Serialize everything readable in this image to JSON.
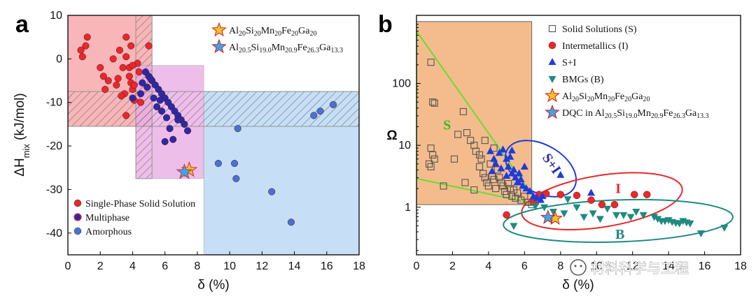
{
  "panel_a_label": "a",
  "panel_b_label": "b",
  "watermark": "材料科学与工程",
  "colors": {
    "red": "#e8282c",
    "navy": "#2a2aa8",
    "blue_point": "#4a70d4",
    "bright_blue": "#1e3cdc",
    "teal": "#1e8a80",
    "orange_region": "#f4bc8c",
    "green_line": "#66dd33",
    "red_region": "#f7a4a8",
    "pink_region": "#eaaee6",
    "blue_region": "#b8d8f4"
  },
  "chart_data": [
    {
      "panel": "a",
      "type": "scatter",
      "xlabel": "δ (%)",
      "ylabel_main": "ΔH",
      "ylabel_sub": "mix",
      "ylabel_unit": " (kJ/mol)",
      "xlim": [
        0,
        18
      ],
      "ylim": [
        -45,
        10
      ],
      "xticks": [
        "0",
        "2",
        "4",
        "6",
        "8",
        "10",
        "12",
        "14",
        "16",
        "18"
      ],
      "yticks": [
        "10",
        "0",
        "-10",
        "-20",
        "-30",
        "-40"
      ],
      "regions": [
        {
          "name": "solid-solution-region",
          "x": [
            0,
            5.2
          ],
          "y": [
            -15.5,
            10
          ],
          "fill": "#f7a4a8"
        },
        {
          "name": "multiphase-region",
          "x": [
            4.2,
            8.4
          ],
          "y": [
            -27.5,
            -1.5
          ],
          "fill": "#eaaee6"
        },
        {
          "name": "amorphous-region",
          "x": [
            8.4,
            18
          ],
          "y": [
            -45,
            -7.5
          ],
          "fill": "#b8d8f4"
        },
        {
          "name": "hatched-vertical-band",
          "x": [
            4.2,
            5.2
          ],
          "y": [
            -27.5,
            10
          ],
          "hatch": true
        },
        {
          "name": "hatched-horizontal-band",
          "x": [
            0,
            18
          ],
          "y": [
            -15.5,
            -7.5
          ],
          "hatch": true
        }
      ],
      "series": [
        {
          "name": "Single-Phase Solid Solution",
          "color": "#e8282c",
          "points": [
            [
              0.9,
              0.5
            ],
            [
              1.1,
              3
            ],
            [
              1.2,
              5
            ],
            [
              0.8,
              2
            ],
            [
              2.0,
              -2
            ],
            [
              2.2,
              -4
            ],
            [
              2.3,
              -7
            ],
            [
              2.8,
              0
            ],
            [
              3.0,
              -6
            ],
            [
              3.2,
              2
            ],
            [
              3.4,
              -2
            ],
            [
              3.6,
              0.5
            ],
            [
              3.5,
              -8
            ],
            [
              3.6,
              -13
            ],
            [
              3.6,
              5
            ],
            [
              3.8,
              -4
            ],
            [
              3.9,
              -5.5
            ],
            [
              4.0,
              -7
            ],
            [
              4.1,
              -9.5
            ],
            [
              4.1,
              -6
            ],
            [
              4.3,
              -1
            ],
            [
              3.8,
              -2
            ],
            [
              4.4,
              -3
            ],
            [
              4.0,
              -1.5
            ],
            [
              3.9,
              3
            ],
            [
              5.0,
              3
            ],
            [
              3.1,
              -4.5
            ],
            [
              3.3,
              -8.5
            ],
            [
              2.5,
              -5
            ],
            [
              4.5,
              -10
            ]
          ]
        },
        {
          "name": "Multiphase",
          "color": "#2a2aa8",
          "points": [
            [
              4.8,
              -3
            ],
            [
              5.0,
              -4
            ],
            [
              5.2,
              -5
            ],
            [
              5.4,
              -6
            ],
            [
              5.6,
              -7
            ],
            [
              5.8,
              -8
            ],
            [
              6.0,
              -9
            ],
            [
              6.2,
              -10
            ],
            [
              6.4,
              -11
            ],
            [
              6.6,
              -12
            ],
            [
              6.8,
              -13
            ],
            [
              7.0,
              -14
            ],
            [
              7.2,
              -15
            ],
            [
              7.4,
              -16.5
            ],
            [
              4.6,
              -5.5
            ],
            [
              4.9,
              -6.5
            ],
            [
              5.3,
              -9
            ],
            [
              5.5,
              -11
            ],
            [
              5.8,
              -12
            ],
            [
              6.1,
              -13.5
            ],
            [
              6.3,
              -16
            ],
            [
              6.0,
              -19
            ],
            [
              6.5,
              -18.5
            ],
            [
              6.8,
              -14
            ],
            [
              5.1,
              -4.5
            ],
            [
              5.7,
              -9.5
            ],
            [
              4.5,
              -8
            ],
            [
              4.0,
              -9
            ]
          ]
        },
        {
          "name": "Amorphous",
          "color": "#4a70d4",
          "points": [
            [
              9.3,
              -24
            ],
            [
              10.3,
              -24
            ],
            [
              10.4,
              -27.5
            ],
            [
              10.5,
              -16
            ],
            [
              12.6,
              -30.5
            ],
            [
              13.8,
              -37.5
            ],
            [
              15.2,
              -13
            ],
            [
              15.6,
              -12
            ],
            [
              16.4,
              -10.5
            ]
          ]
        }
      ],
      "stars": [
        {
          "name": "Al20Si20Mn20Fe20Ga20",
          "x": 7.5,
          "y": -25.5,
          "color": "#f5c028"
        },
        {
          "name": "Al20.5Si19.0Mn20.9Fe26.3Ga13.3",
          "x": 7.2,
          "y": -26,
          "color": "#3aa6ee"
        }
      ],
      "legend_top": [
        {
          "parts": [
            "Al",
            "20",
            "Si",
            "20",
            "Mn",
            "20",
            "Fe",
            "20",
            "Ga",
            "20"
          ],
          "color": "#f5c028"
        },
        {
          "parts": [
            "Al",
            "20.5",
            "Si",
            "19.0",
            "Mn",
            "20.9",
            "Fe",
            "26.3",
            "Ga",
            "13.3"
          ],
          "color": "#3aa6ee"
        }
      ],
      "legend_bottom": [
        "Single-Phase Solid Solution",
        "Multiphase",
        "Amorphous"
      ]
    },
    {
      "panel": "b",
      "type": "scatter",
      "xlabel": "δ (%)",
      "ylabel": "Ω",
      "xlim": [
        0,
        18
      ],
      "ylim_log10": [
        -0.77,
        3.1
      ],
      "xticks": [
        "0",
        "2",
        "4",
        "6",
        "8",
        "10",
        "12",
        "14",
        "16",
        "18"
      ],
      "yticks": [
        {
          "label": "1",
          "value": 1
        },
        {
          "label": "10",
          "value": 10
        },
        {
          "label": "100",
          "value": 100
        }
      ],
      "region_labels": [
        {
          "text": "S",
          "x": 1.7,
          "omega": 18,
          "color": "#33bb22"
        },
        {
          "text": "S+I",
          "x": 7.3,
          "omega": 4.6,
          "color": "#2a2aa8"
        },
        {
          "text": "I",
          "x": 11.2,
          "omega": 1.7,
          "color": "#e8282c"
        },
        {
          "text": "B",
          "x": 11.3,
          "omega": 0.31,
          "color": "#1e8a80"
        }
      ],
      "series": [
        {
          "name": "Solid Solutions (S)",
          "marker": "square-open",
          "color": "#555555",
          "points": [
            [
              0.8,
              220
            ],
            [
              0.9,
              50
            ],
            [
              1.0,
              48
            ],
            [
              0.8,
              9
            ],
            [
              0.9,
              7
            ],
            [
              0.7,
              5
            ],
            [
              1.0,
              6
            ],
            [
              0.8,
              4.5
            ],
            [
              1.5,
              2.2
            ],
            [
              2.1,
              6
            ],
            [
              2.3,
              15
            ],
            [
              2.6,
              35
            ],
            [
              2.8,
              16
            ],
            [
              3.0,
              12
            ],
            [
              3.2,
              10
            ],
            [
              3.3,
              8
            ],
            [
              3.5,
              7
            ],
            [
              3.6,
              6
            ],
            [
              3.5,
              4.5
            ],
            [
              3.7,
              3.5
            ],
            [
              3.8,
              3
            ],
            [
              3.9,
              2.5
            ],
            [
              4.0,
              2.2
            ],
            [
              4.1,
              5
            ],
            [
              4.2,
              3.2
            ],
            [
              4.3,
              2.8
            ],
            [
              4.4,
              2
            ],
            [
              4.5,
              4
            ],
            [
              4.6,
              3
            ],
            [
              4.7,
              2.5
            ],
            [
              4.8,
              2.2
            ],
            [
              4.9,
              1.8
            ],
            [
              5.0,
              1.6
            ],
            [
              5.1,
              2.4
            ],
            [
              5.2,
              2
            ],
            [
              5.3,
              1.5
            ],
            [
              5.4,
              1.9
            ],
            [
              5.5,
              1.4
            ],
            [
              5.6,
              1.7
            ],
            [
              5.8,
              1.3
            ],
            [
              6.0,
              1.5
            ],
            [
              6.2,
              1.2
            ],
            [
              6.4,
              1.1
            ],
            [
              2.7,
              2.5
            ],
            [
              3.2,
              1.9
            ],
            [
              3.8,
              12
            ],
            [
              4.3,
              9
            ]
          ]
        },
        {
          "name": "Intermetallics (I)",
          "marker": "circle",
          "color": "#e8282c",
          "points": [
            [
              5.0,
              0.75
            ],
            [
              6.8,
              1.6
            ],
            [
              7.2,
              1.65
            ],
            [
              8.0,
              1.6
            ],
            [
              8.9,
              1.55
            ],
            [
              9.7,
              1.3
            ],
            [
              10.3,
              1.1
            ],
            [
              11.0,
              1.1
            ],
            [
              12.1,
              1.6
            ],
            [
              12.8,
              1.6
            ],
            [
              6.5,
              1.2
            ]
          ]
        },
        {
          "name": "S+I",
          "marker": "triangle-up",
          "color": "#1e3cdc",
          "points": [
            [
              4.1,
              8
            ],
            [
              4.3,
              6
            ],
            [
              4.4,
              5
            ],
            [
              4.6,
              7.5
            ],
            [
              4.8,
              8.5
            ],
            [
              5.0,
              6
            ],
            [
              5.1,
              4.5
            ],
            [
              5.2,
              6.5
            ],
            [
              5.3,
              3.5
            ],
            [
              5.4,
              4
            ],
            [
              5.5,
              3
            ],
            [
              5.6,
              2.5
            ],
            [
              5.8,
              2.8
            ],
            [
              5.9,
              2.2
            ],
            [
              6.1,
              2
            ],
            [
              6.3,
              1.8
            ],
            [
              6.5,
              1.5
            ],
            [
              6.7,
              1.4
            ],
            [
              6.9,
              1.3
            ],
            [
              7.0,
              1.5
            ],
            [
              4.7,
              4.2
            ],
            [
              5.0,
              3.2
            ],
            [
              5.7,
              3.5
            ],
            [
              8.0,
              3.3
            ],
            [
              9.7,
              1.7
            ],
            [
              4.2,
              3.8
            ],
            [
              5.3,
              8.2
            ],
            [
              6.0,
              4.5
            ]
          ]
        },
        {
          "name": "BMGs (B)",
          "marker": "triangle-down",
          "color": "#1e8a80",
          "points": [
            [
              5.4,
              0.5
            ],
            [
              6.6,
              1.05
            ],
            [
              7.1,
              1.0
            ],
            [
              7.6,
              0.85
            ],
            [
              8.2,
              0.8
            ],
            [
              8.9,
              1.0
            ],
            [
              9.3,
              0.7
            ],
            [
              9.8,
              0.8
            ],
            [
              10.2,
              0.65
            ],
            [
              10.6,
              0.95
            ],
            [
              11.1,
              0.75
            ],
            [
              11.5,
              0.75
            ],
            [
              11.9,
              0.7
            ],
            [
              12.2,
              0.85
            ],
            [
              12.6,
              0.75
            ],
            [
              13.2,
              0.7
            ],
            [
              13.4,
              0.65
            ],
            [
              13.6,
              0.6
            ],
            [
              13.8,
              0.6
            ],
            [
              14.0,
              0.62
            ],
            [
              14.2,
              0.58
            ],
            [
              14.4,
              0.56
            ],
            [
              14.6,
              0.55
            ],
            [
              14.8,
              0.6
            ],
            [
              15.0,
              0.57
            ],
            [
              15.2,
              0.55
            ],
            [
              17.1,
              0.47
            ],
            [
              15.8,
              0.38
            ],
            [
              8.4,
              1.35
            ]
          ]
        }
      ],
      "stars": [
        {
          "name": "Al20Si20Mn20Fe20Ga20",
          "x": 7.7,
          "omega": 0.66,
          "color": "#f5c028"
        },
        {
          "name": "DQC in Al20.5Si19.0Mn20.9Fe26.3Ga13.3",
          "x": 7.3,
          "omega": 0.68,
          "color": "#3aa6ee"
        }
      ],
      "legend": [
        {
          "text": "Solid Solutions (S)",
          "marker": "square-open",
          "color": "#555555"
        },
        {
          "text": "Intermetallics (I)",
          "marker": "circle",
          "color": "#e8282c"
        },
        {
          "text": "S+I",
          "marker": "triangle-up",
          "color": "#1e3cdc"
        },
        {
          "text": "BMGs (B)",
          "marker": "triangle-down",
          "color": "#1e8a80"
        },
        {
          "text": "",
          "parts": [
            "Al",
            "20",
            "Si",
            "20",
            "Mn",
            "20",
            "Fe",
            "20",
            "Ga",
            "20"
          ],
          "marker": "star",
          "color": "#f5c028"
        },
        {
          "text": "DQC in ",
          "parts": [
            "Al",
            "20.5",
            "Si",
            "19.0",
            "Mn",
            "20.9",
            "Fe",
            "26.3",
            "Ga",
            "13.3"
          ],
          "marker": "star",
          "color": "#3aa6ee"
        }
      ]
    }
  ]
}
